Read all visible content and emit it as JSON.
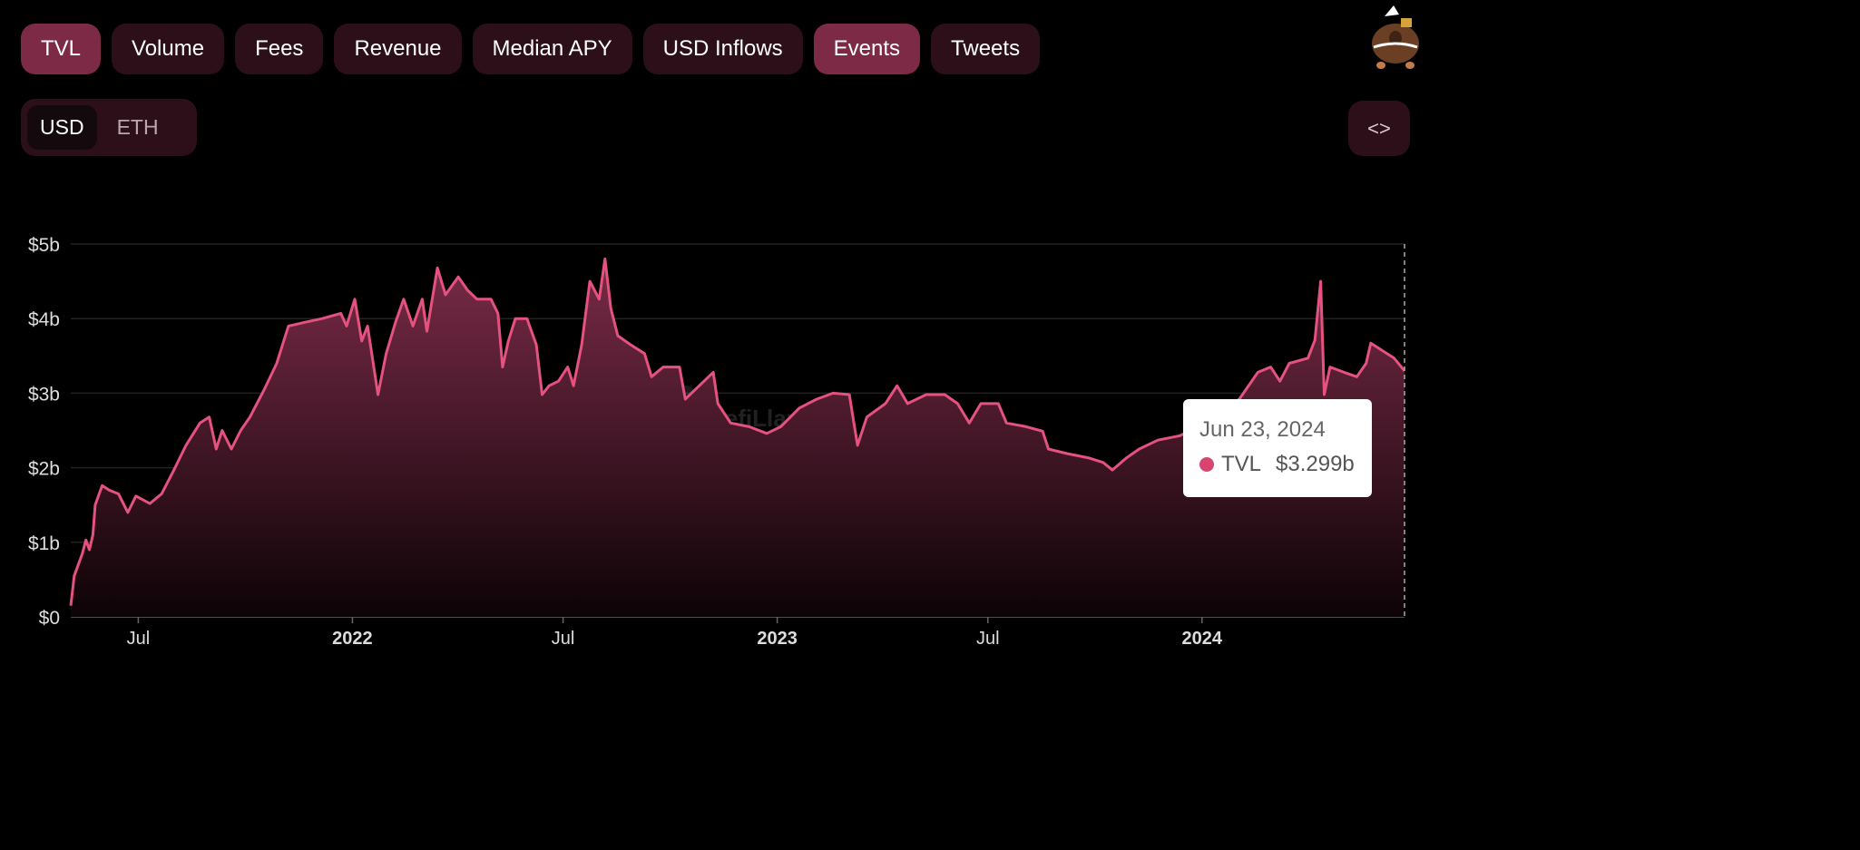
{
  "tabs": [
    {
      "label": "TVL",
      "active": true
    },
    {
      "label": "Volume",
      "active": false
    },
    {
      "label": "Fees",
      "active": false
    },
    {
      "label": "Revenue",
      "active": false
    },
    {
      "label": "Median APY",
      "active": false
    },
    {
      "label": "USD Inflows",
      "active": false
    },
    {
      "label": "Events",
      "active": true
    },
    {
      "label": "Tweets",
      "active": false
    }
  ],
  "currency_toggle": {
    "options": [
      "USD",
      "ETH"
    ],
    "selected": "USD"
  },
  "embed_button": {
    "icon": "code-brackets-icon",
    "label": "<>"
  },
  "avatar": {
    "icon": "llama-mascot-icon"
  },
  "watermark": "DefiLlama",
  "tooltip": {
    "date": "Jun 23, 2024",
    "series": "TVL",
    "value": "$3.299b"
  },
  "colors": {
    "line": "#e5527f",
    "fill_top": "#7a2b48",
    "background": "#000000",
    "tab_active": "#7d2a47",
    "tab": "#2c0f19"
  },
  "chart_data": {
    "type": "area",
    "grid": true,
    "legend": "none",
    "y_ticks": [
      "$0",
      "$1b",
      "$2b",
      "$3b",
      "$4b",
      "$5b"
    ],
    "ylim": [
      0,
      5
    ],
    "x_ticks": [
      {
        "date": "2021-07-01",
        "label": "Jul",
        "bold": false
      },
      {
        "date": "2022-01-01",
        "label": "2022",
        "bold": true
      },
      {
        "date": "2022-07-01",
        "label": "Jul",
        "bold": false
      },
      {
        "date": "2023-01-01",
        "label": "2023",
        "bold": true
      },
      {
        "date": "2023-07-01",
        "label": "Jul",
        "bold": false
      },
      {
        "date": "2024-01-01",
        "label": "2024",
        "bold": true
      }
    ],
    "xlim": [
      "2021-05-04",
      "2024-06-23"
    ],
    "series": [
      {
        "name": "TVL",
        "unit": "USD billions",
        "points": [
          [
            "2021-05-04",
            0.15
          ],
          [
            "2021-05-07",
            0.55
          ],
          [
            "2021-05-14",
            0.85
          ],
          [
            "2021-05-17",
            1.03
          ],
          [
            "2021-05-20",
            0.9
          ],
          [
            "2021-05-23",
            1.1
          ],
          [
            "2021-05-25",
            1.5
          ],
          [
            "2021-05-31",
            1.76
          ],
          [
            "2021-06-06",
            1.7
          ],
          [
            "2021-06-14",
            1.65
          ],
          [
            "2021-06-22",
            1.4
          ],
          [
            "2021-06-29",
            1.62
          ],
          [
            "2021-07-11",
            1.52
          ],
          [
            "2021-07-21",
            1.65
          ],
          [
            "2021-07-31",
            1.95
          ],
          [
            "2021-08-11",
            2.3
          ],
          [
            "2021-08-23",
            2.6
          ],
          [
            "2021-08-31",
            2.68
          ],
          [
            "2021-09-06",
            2.25
          ],
          [
            "2021-09-11",
            2.5
          ],
          [
            "2021-09-19",
            2.25
          ],
          [
            "2021-09-27",
            2.5
          ],
          [
            "2021-10-05",
            2.68
          ],
          [
            "2021-10-17",
            3.04
          ],
          [
            "2021-10-28",
            3.4
          ],
          [
            "2021-11-07",
            3.9
          ],
          [
            "2021-11-21",
            3.95
          ],
          [
            "2021-12-06",
            4.0
          ],
          [
            "2021-12-22",
            4.07
          ],
          [
            "2021-12-27",
            3.9
          ],
          [
            "2022-01-03",
            4.26
          ],
          [
            "2022-01-09",
            3.7
          ],
          [
            "2022-01-14",
            3.9
          ],
          [
            "2022-01-23",
            2.98
          ],
          [
            "2022-01-30",
            3.53
          ],
          [
            "2022-02-07",
            3.95
          ],
          [
            "2022-02-14",
            4.26
          ],
          [
            "2022-02-22",
            3.9
          ],
          [
            "2022-03-02",
            4.26
          ],
          [
            "2022-03-06",
            3.83
          ],
          [
            "2022-03-15",
            4.68
          ],
          [
            "2022-03-22",
            4.32
          ],
          [
            "2022-04-02",
            4.56
          ],
          [
            "2022-04-10",
            4.38
          ],
          [
            "2022-04-18",
            4.26
          ],
          [
            "2022-04-30",
            4.26
          ],
          [
            "2022-05-06",
            4.07
          ],
          [
            "2022-05-10",
            3.35
          ],
          [
            "2022-05-15",
            3.7
          ],
          [
            "2022-05-21",
            4.0
          ],
          [
            "2022-05-31",
            4.0
          ],
          [
            "2022-06-08",
            3.65
          ],
          [
            "2022-06-13",
            2.98
          ],
          [
            "2022-06-19",
            3.1
          ],
          [
            "2022-06-27",
            3.16
          ],
          [
            "2022-07-05",
            3.35
          ],
          [
            "2022-07-10",
            3.1
          ],
          [
            "2022-07-17",
            3.65
          ],
          [
            "2022-07-24",
            4.5
          ],
          [
            "2022-08-01",
            4.26
          ],
          [
            "2022-08-06",
            4.8
          ],
          [
            "2022-08-11",
            4.14
          ],
          [
            "2022-08-17",
            3.77
          ],
          [
            "2022-08-28",
            3.65
          ],
          [
            "2022-09-09",
            3.53
          ],
          [
            "2022-09-15",
            3.22
          ],
          [
            "2022-09-25",
            3.35
          ],
          [
            "2022-10-09",
            3.35
          ],
          [
            "2022-10-14",
            2.92
          ],
          [
            "2022-10-26",
            3.1
          ],
          [
            "2022-11-07",
            3.28
          ],
          [
            "2022-11-11",
            2.86
          ],
          [
            "2022-11-22",
            2.6
          ],
          [
            "2022-12-08",
            2.55
          ],
          [
            "2022-12-23",
            2.46
          ],
          [
            "2023-01-04",
            2.55
          ],
          [
            "2023-01-20",
            2.8
          ],
          [
            "2023-02-04",
            2.92
          ],
          [
            "2023-02-18",
            3.0
          ],
          [
            "2023-03-04",
            2.98
          ],
          [
            "2023-03-11",
            2.3
          ],
          [
            "2023-03-19",
            2.68
          ],
          [
            "2023-04-04",
            2.86
          ],
          [
            "2023-04-14",
            3.1
          ],
          [
            "2023-04-23",
            2.86
          ],
          [
            "2023-05-09",
            2.98
          ],
          [
            "2023-05-25",
            2.98
          ],
          [
            "2023-06-05",
            2.86
          ],
          [
            "2023-06-15",
            2.6
          ],
          [
            "2023-06-25",
            2.86
          ],
          [
            "2023-07-10",
            2.86
          ],
          [
            "2023-07-17",
            2.6
          ],
          [
            "2023-08-03",
            2.55
          ],
          [
            "2023-08-17",
            2.49
          ],
          [
            "2023-08-22",
            2.25
          ],
          [
            "2023-09-07",
            2.19
          ],
          [
            "2023-09-26",
            2.13
          ],
          [
            "2023-10-08",
            2.07
          ],
          [
            "2023-10-16",
            1.97
          ],
          [
            "2023-10-28",
            2.13
          ],
          [
            "2023-11-08",
            2.25
          ],
          [
            "2023-11-24",
            2.37
          ],
          [
            "2023-12-13",
            2.43
          ],
          [
            "2023-12-29",
            2.55
          ],
          [
            "2024-01-17",
            2.74
          ],
          [
            "2024-02-02",
            2.92
          ],
          [
            "2024-02-18",
            3.28
          ],
          [
            "2024-02-29",
            3.35
          ],
          [
            "2024-03-08",
            3.16
          ],
          [
            "2024-03-16",
            3.4
          ],
          [
            "2024-04-01",
            3.47
          ],
          [
            "2024-04-07",
            3.71
          ],
          [
            "2024-04-12",
            4.5
          ],
          [
            "2024-04-15",
            2.98
          ],
          [
            "2024-04-20",
            3.35
          ],
          [
            "2024-05-02",
            3.28
          ],
          [
            "2024-05-13",
            3.22
          ],
          [
            "2024-05-21",
            3.4
          ],
          [
            "2024-05-25",
            3.67
          ],
          [
            "2024-06-02",
            3.59
          ],
          [
            "2024-06-14",
            3.47
          ],
          [
            "2024-06-23",
            3.299
          ]
        ]
      }
    ]
  }
}
